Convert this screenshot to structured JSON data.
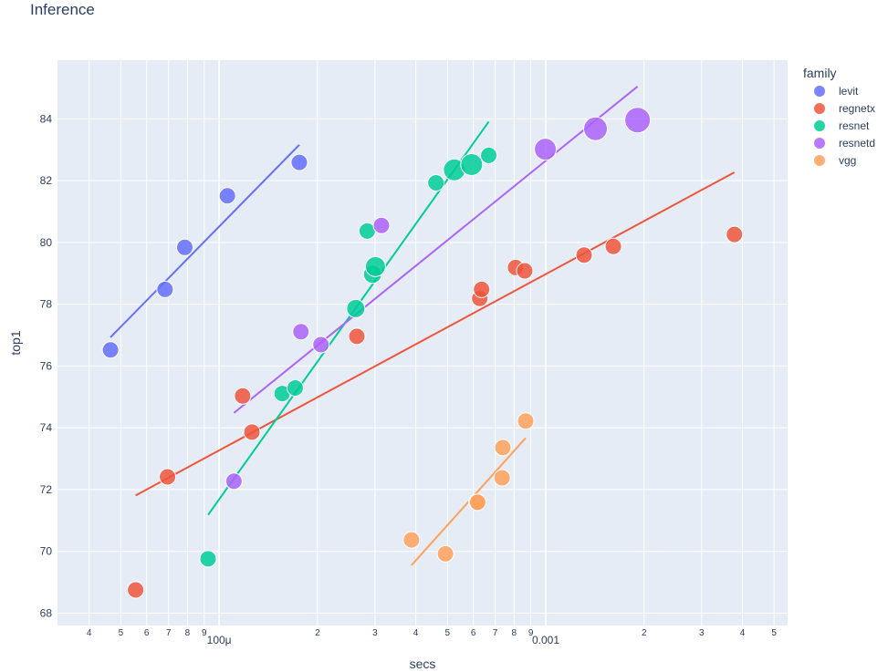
{
  "chart_data": {
    "type": "scatter",
    "title": "Inference",
    "xlabel": "secs",
    "ylabel": "top1",
    "x_scale": "log",
    "xlim": [
      3.2e-05,
      0.0055
    ],
    "ylim": [
      67.6,
      85.9
    ],
    "grid": true,
    "legend": {
      "title": "family",
      "position": "right"
    },
    "y_ticks": [
      68,
      70,
      72,
      74,
      76,
      78,
      80,
      82,
      84
    ],
    "x_ticks": [
      {
        "value": 4e-05,
        "label": "4"
      },
      {
        "value": 5e-05,
        "label": "5"
      },
      {
        "value": 6e-05,
        "label": "6"
      },
      {
        "value": 7e-05,
        "label": "7"
      },
      {
        "value": 8e-05,
        "label": "8"
      },
      {
        "value": 9e-05,
        "label": "9"
      },
      {
        "value": 0.0001,
        "label": "100μ"
      },
      {
        "value": 0.0002,
        "label": "2"
      },
      {
        "value": 0.0003,
        "label": "3"
      },
      {
        "value": 0.0004,
        "label": "4"
      },
      {
        "value": 0.0005,
        "label": "5"
      },
      {
        "value": 0.0006,
        "label": "6"
      },
      {
        "value": 0.0007,
        "label": "7"
      },
      {
        "value": 0.0008,
        "label": "8"
      },
      {
        "value": 0.0009,
        "label": "9"
      },
      {
        "value": 0.001,
        "label": "0.001"
      },
      {
        "value": 0.002,
        "label": "2"
      },
      {
        "value": 0.003,
        "label": "3"
      },
      {
        "value": 0.004,
        "label": "4"
      },
      {
        "value": 0.005,
        "label": "5"
      }
    ],
    "series": [
      {
        "name": "levit",
        "color": "#636efa",
        "points": [
          {
            "x": 4.65e-05,
            "y": 76.52,
            "size": 9
          },
          {
            "x": 6.83e-05,
            "y": 78.48,
            "size": 9
          },
          {
            "x": 7.85e-05,
            "y": 79.84,
            "size": 9
          },
          {
            "x": 0.000106,
            "y": 81.51,
            "size": 9
          },
          {
            "x": 0.000176,
            "y": 82.59,
            "size": 9
          }
        ],
        "trend": [
          {
            "x": 4.65e-05,
            "y": 76.93
          },
          {
            "x": 0.000176,
            "y": 83.16
          }
        ]
      },
      {
        "name": "regnetx",
        "color": "#ef553b",
        "points": [
          {
            "x": 5.55e-05,
            "y": 68.75,
            "size": 9
          },
          {
            "x": 6.95e-05,
            "y": 72.41,
            "size": 9
          },
          {
            "x": 0.000118,
            "y": 75.03,
            "size": 9
          },
          {
            "x": 0.000126,
            "y": 73.86,
            "size": 9
          },
          {
            "x": 0.000264,
            "y": 76.96,
            "size": 9
          },
          {
            "x": 0.000628,
            "y": 78.19,
            "size": 9
          },
          {
            "x": 0.000636,
            "y": 78.48,
            "size": 9
          },
          {
            "x": 0.000808,
            "y": 79.19,
            "size": 9
          },
          {
            "x": 0.000862,
            "y": 79.08,
            "size": 9
          },
          {
            "x": 0.00131,
            "y": 79.59,
            "size": 9
          },
          {
            "x": 0.00161,
            "y": 79.87,
            "size": 9
          },
          {
            "x": 0.00378,
            "y": 80.26,
            "size": 9
          }
        ],
        "trend": [
          {
            "x": 5.55e-05,
            "y": 71.81
          },
          {
            "x": 0.00378,
            "y": 82.27
          }
        ]
      },
      {
        "name": "resnet",
        "color": "#00cc96",
        "points": [
          {
            "x": 9.25e-05,
            "y": 69.76,
            "size": 9
          },
          {
            "x": 0.000156,
            "y": 75.11,
            "size": 9
          },
          {
            "x": 0.000171,
            "y": 75.29,
            "size": 9
          },
          {
            "x": 0.000262,
            "y": 77.86,
            "size": 10
          },
          {
            "x": 0.000284,
            "y": 80.37,
            "size": 9
          },
          {
            "x": 0.000295,
            "y": 78.97,
            "size": 10
          },
          {
            "x": 0.000301,
            "y": 79.22,
            "size": 11
          },
          {
            "x": 0.000461,
            "y": 81.93,
            "size": 9
          },
          {
            "x": 0.000525,
            "y": 82.35,
            "size": 12
          },
          {
            "x": 0.000593,
            "y": 82.52,
            "size": 12
          },
          {
            "x": 0.000669,
            "y": 82.82,
            "size": 9
          }
        ],
        "trend": [
          {
            "x": 9.25e-05,
            "y": 71.18
          },
          {
            "x": 0.000669,
            "y": 83.91
          }
        ]
      },
      {
        "name": "resnetd",
        "color": "#ab63fa",
        "points": [
          {
            "x": 0.000111,
            "y": 72.27,
            "size": 9
          },
          {
            "x": 0.000178,
            "y": 77.11,
            "size": 9
          },
          {
            "x": 0.000205,
            "y": 76.69,
            "size": 9
          },
          {
            "x": 0.000314,
            "y": 80.55,
            "size": 9
          },
          {
            "x": 0.000997,
            "y": 83.02,
            "size": 12
          },
          {
            "x": 0.00142,
            "y": 83.68,
            "size": 13
          },
          {
            "x": 0.00191,
            "y": 83.96,
            "size": 14
          }
        ],
        "trend": [
          {
            "x": 0.000111,
            "y": 74.48
          },
          {
            "x": 0.00191,
            "y": 85.05
          }
        ]
      },
      {
        "name": "vgg",
        "color": "#ffa15a",
        "points": [
          {
            "x": 0.000388,
            "y": 70.37,
            "size": 9
          },
          {
            "x": 0.000493,
            "y": 69.92,
            "size": 9
          },
          {
            "x": 0.000615,
            "y": 71.59,
            "size": 9
          },
          {
            "x": 0.000619,
            "y": 71.59,
            "size": 9
          },
          {
            "x": 0.000735,
            "y": 72.38,
            "size": 9
          },
          {
            "x": 0.000739,
            "y": 73.36,
            "size": 9
          },
          {
            "x": 0.000868,
            "y": 74.22,
            "size": 9
          }
        ],
        "trend": [
          {
            "x": 0.000388,
            "y": 69.55
          },
          {
            "x": 0.000868,
            "y": 73.67
          }
        ]
      }
    ]
  }
}
